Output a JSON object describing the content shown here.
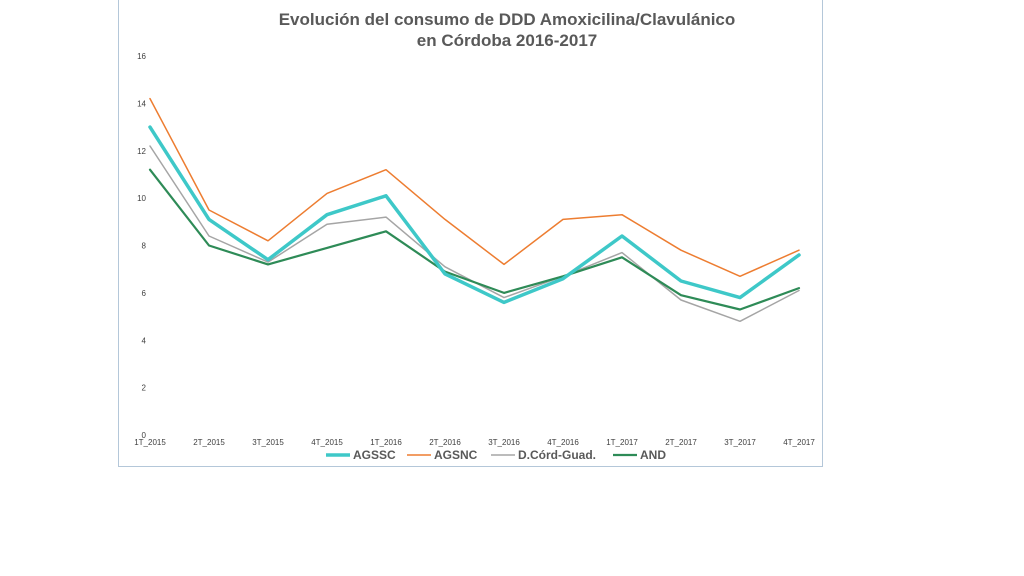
{
  "chart_data": {
    "type": "line",
    "title": "Evolución del consumo de DDD Amoxicilina/Clavulánico",
    "subtitle": "en Córdoba 2016-2017",
    "categories": [
      "1T_2015",
      "2T_2015",
      "3T_2015",
      "4T_2015",
      "1T_2016",
      "2T_2016",
      "3T_2016",
      "4T_2016",
      "1T_2017",
      "2T_2017",
      "3T_2017",
      "4T_2017"
    ],
    "ylim": [
      0,
      16
    ],
    "yticks": [
      0,
      2,
      4,
      6,
      8,
      10,
      12,
      14,
      16
    ],
    "grid": false,
    "legend_position": "bottom",
    "series": [
      {
        "name": "AGSSC",
        "color": "#3ec8c8",
        "width": 3.5,
        "values": [
          13.0,
          9.1,
          7.4,
          9.3,
          10.1,
          6.8,
          5.6,
          6.6,
          8.4,
          6.5,
          5.8,
          7.6
        ]
      },
      {
        "name": "AGSNC",
        "color": "#ed7d31",
        "width": 1.5,
        "values": [
          14.2,
          9.5,
          8.2,
          10.2,
          11.2,
          9.1,
          7.2,
          9.1,
          9.3,
          7.8,
          6.7,
          7.8
        ]
      },
      {
        "name": "D.Córd-Guad.",
        "color": "#a5a5a5",
        "width": 1.5,
        "values": [
          12.2,
          8.4,
          7.3,
          8.9,
          9.2,
          7.1,
          5.8,
          6.7,
          7.7,
          5.7,
          4.8,
          6.1
        ]
      },
      {
        "name": "AND",
        "color": "#2e8b57",
        "width": 2.2,
        "values": [
          11.2,
          8.0,
          7.2,
          7.9,
          8.6,
          6.9,
          6.0,
          6.7,
          7.5,
          5.9,
          5.3,
          6.2
        ]
      }
    ]
  }
}
